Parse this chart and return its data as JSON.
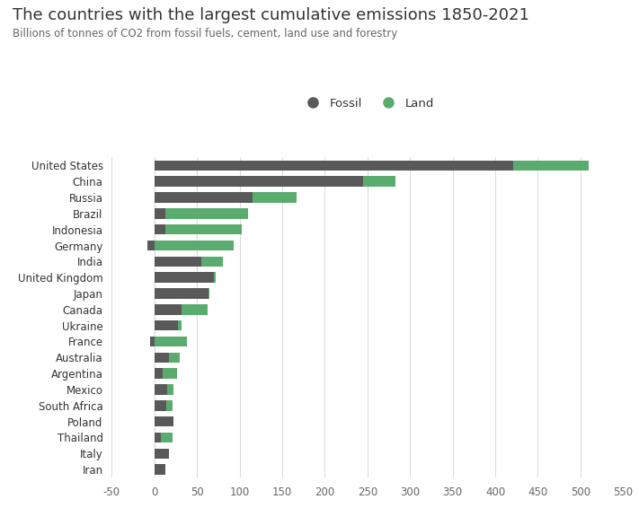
{
  "title": "The countries with the largest cumulative emissions 1850-2021",
  "subtitle": "Billions of tonnes of CO2 from fossil fuels, cement, land use and forestry",
  "countries": [
    "United States",
    "China",
    "Russia",
    "Brazil",
    "Indonesia",
    "Germany",
    "India",
    "United Kingdom",
    "Japan",
    "Canada",
    "Ukraine",
    "France",
    "Australia",
    "Argentina",
    "Mexico",
    "South Africa",
    "Poland",
    "Thailand",
    "Italy",
    "Iran"
  ],
  "fossil": [
    421,
    245,
    115,
    13,
    13,
    -8,
    55,
    70,
    63,
    32,
    28,
    -5,
    17,
    10,
    15,
    14,
    22,
    8,
    17,
    13
  ],
  "land": [
    89,
    38,
    52,
    97,
    90,
    93,
    25,
    2,
    2,
    30,
    4,
    38,
    13,
    17,
    7,
    7,
    0,
    13,
    0,
    0
  ],
  "fossil_color": "#595959",
  "land_color": "#5aac6e",
  "background_color": "#ffffff",
  "grid_color": "#d9d9d9",
  "text_color": "#333333",
  "subtext_color": "#666666",
  "xlim": [
    -50,
    550
  ],
  "xticks": [
    -50,
    0,
    50,
    100,
    150,
    200,
    250,
    300,
    350,
    400,
    450,
    500,
    550
  ],
  "title_fontsize": 13,
  "subtitle_fontsize": 8.5,
  "legend_fontsize": 9.5,
  "tick_fontsize": 8.5,
  "bar_height": 0.65
}
